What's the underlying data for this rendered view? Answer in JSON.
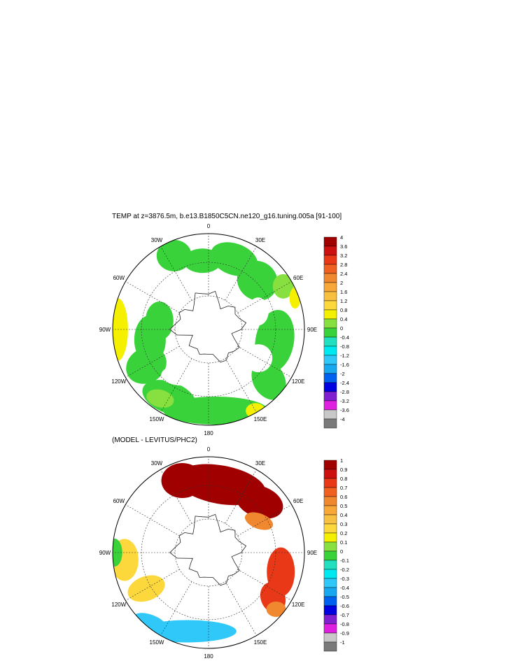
{
  "chart_data": [
    {
      "type": "heatmap",
      "projection": "south-polar-stereographic",
      "title": "TEMP at z=3876.5m, b.e13.B1850C5CN.ne120_g16.tuning.005a [91-100]",
      "lon_labels": [
        "0",
        "30E",
        "60E",
        "90E",
        "120E",
        "150E",
        "180",
        "150W",
        "120W",
        "90W",
        "60W",
        "30W"
      ],
      "legend": {
        "placement": "right",
        "labels": [
          "4",
          "3.6",
          "3.2",
          "2.8",
          "2.4",
          "2",
          "1.6",
          "1.2",
          "0.8",
          "0.4",
          "0",
          "-0.4",
          "-0.8",
          "-1.2",
          "-1.6",
          "-2",
          "-2.4",
          "-2.8",
          "-3.2",
          "-3.6",
          "-4"
        ],
        "colors": [
          "#a00000",
          "#cc1010",
          "#e83818",
          "#f06020",
          "#f08830",
          "#f8a838",
          "#f8c040",
          "#fcd83c",
          "#f4f000",
          "#88e040",
          "#3ad23a",
          "#20e0c0",
          "#00e8f0",
          "#30c8f8",
          "#18a8f0",
          "#0060f0",
          "#0000e0",
          "#8020d0",
          "#e020e0",
          "#c8c8c8",
          "#7a7a7a"
        ]
      }
    },
    {
      "type": "heatmap",
      "projection": "south-polar-stereographic",
      "title": "(MODEL - LEVITUS/PHC2)",
      "lon_labels": [
        "0",
        "30E",
        "60E",
        "90E",
        "120E",
        "150E",
        "180",
        "150W",
        "120W",
        "90W",
        "60W",
        "30W"
      ],
      "legend": {
        "placement": "right",
        "labels": [
          "1",
          "0.9",
          "0.8",
          "0.7",
          "0.6",
          "0.5",
          "0.4",
          "0.3",
          "0.2",
          "0.1",
          "0",
          "-0.1",
          "-0.2",
          "-0.3",
          "-0.4",
          "-0.5",
          "-0.6",
          "-0.7",
          "-0.8",
          "-0.9",
          "-1"
        ],
        "colors": [
          "#a00000",
          "#cc1010",
          "#e83818",
          "#f06020",
          "#f08830",
          "#f8a838",
          "#f8c040",
          "#fcd83c",
          "#f4f000",
          "#88e040",
          "#3ad23a",
          "#20e0c0",
          "#00e8f0",
          "#30c8f8",
          "#18a8f0",
          "#0060f0",
          "#0000e0",
          "#8020d0",
          "#e020e0",
          "#c8c8c8",
          "#7a7a7a"
        ]
      }
    }
  ]
}
